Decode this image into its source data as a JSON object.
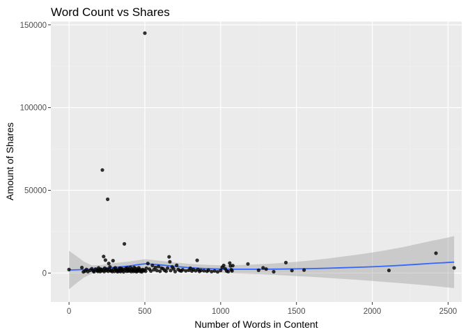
{
  "chart_data": {
    "type": "scatter",
    "title": "Word Count vs Shares",
    "xlabel": "Number of Words in Content",
    "ylabel": "Amount of Shares",
    "xlim": [
      -120,
      2590
    ],
    "ylim": [
      -17500,
      152000
    ],
    "x_ticks": [
      0,
      500,
      1000,
      1500,
      2000,
      2500
    ],
    "y_ticks": [
      0,
      50000,
      100000,
      150000
    ],
    "x_tick_labels": [
      "0",
      "500",
      "1000",
      "1500",
      "2000",
      "2500"
    ],
    "y_tick_labels": [
      "0",
      "50000",
      "100000",
      "150000"
    ],
    "grid": true,
    "legend": "none",
    "colors": {
      "panel": "#ebebeb",
      "grid_major": "#ffffff",
      "grid_minor": "#f2f2f2",
      "points": "#000000",
      "smooth_line": "#3366ff",
      "confidence_band": "#999999"
    },
    "points": [
      [
        0,
        2100
      ],
      [
        85,
        3300
      ],
      [
        95,
        700
      ],
      [
        105,
        1200
      ],
      [
        115,
        2200
      ],
      [
        125,
        900
      ],
      [
        140,
        1700
      ],
      [
        150,
        2600
      ],
      [
        160,
        1300
      ],
      [
        165,
        800
      ],
      [
        175,
        2400
      ],
      [
        185,
        1500
      ],
      [
        190,
        1000
      ],
      [
        195,
        3100
      ],
      [
        200,
        1900
      ],
      [
        205,
        900
      ],
      [
        210,
        2300
      ],
      [
        215,
        1400
      ],
      [
        220,
        62300
      ],
      [
        225,
        1800
      ],
      [
        228,
        10000
      ],
      [
        232,
        900
      ],
      [
        235,
        3000
      ],
      [
        240,
        7800
      ],
      [
        245,
        1500
      ],
      [
        250,
        2300
      ],
      [
        255,
        44600
      ],
      [
        258,
        1100
      ],
      [
        262,
        5800
      ],
      [
        265,
        2200
      ],
      [
        270,
        3700
      ],
      [
        275,
        1300
      ],
      [
        280,
        1600
      ],
      [
        285,
        900
      ],
      [
        290,
        7500
      ],
      [
        295,
        2400
      ],
      [
        300,
        1000
      ],
      [
        305,
        3200
      ],
      [
        310,
        1900
      ],
      [
        315,
        1400
      ],
      [
        320,
        800
      ],
      [
        325,
        2100
      ],
      [
        330,
        1200
      ],
      [
        335,
        3000
      ],
      [
        340,
        900
      ],
      [
        345,
        2700
      ],
      [
        350,
        1500
      ],
      [
        355,
        2300
      ],
      [
        360,
        700
      ],
      [
        365,
        17600
      ],
      [
        370,
        1800
      ],
      [
        375,
        2900
      ],
      [
        380,
        1100
      ],
      [
        385,
        3100
      ],
      [
        390,
        1200
      ],
      [
        395,
        2100
      ],
      [
        400,
        1400
      ],
      [
        405,
        3400
      ],
      [
        410,
        900
      ],
      [
        415,
        2400
      ],
      [
        420,
        1700
      ],
      [
        425,
        1000
      ],
      [
        430,
        3300
      ],
      [
        435,
        1200
      ],
      [
        440,
        2700
      ],
      [
        445,
        800
      ],
      [
        450,
        1900
      ],
      [
        455,
        1200
      ],
      [
        460,
        3200
      ],
      [
        465,
        2200
      ],
      [
        470,
        1000
      ],
      [
        475,
        1600
      ],
      [
        480,
        700
      ],
      [
        485,
        2100
      ],
      [
        490,
        1400
      ],
      [
        495,
        1800
      ],
      [
        500,
        145000
      ],
      [
        505,
        1100
      ],
      [
        510,
        2900
      ],
      [
        520,
        5800
      ],
      [
        530,
        2400
      ],
      [
        540,
        1200
      ],
      [
        550,
        4600
      ],
      [
        560,
        2000
      ],
      [
        570,
        3400
      ],
      [
        580,
        1500
      ],
      [
        590,
        4000
      ],
      [
        600,
        1100
      ],
      [
        610,
        3000
      ],
      [
        620,
        2600
      ],
      [
        630,
        1700
      ],
      [
        640,
        1100
      ],
      [
        650,
        3000
      ],
      [
        660,
        9800
      ],
      [
        665,
        6800
      ],
      [
        670,
        1500
      ],
      [
        680,
        3700
      ],
      [
        690,
        2500
      ],
      [
        700,
        900
      ],
      [
        710,
        4700
      ],
      [
        720,
        2200
      ],
      [
        730,
        1500
      ],
      [
        740,
        1200
      ],
      [
        750,
        2000
      ],
      [
        770,
        1300
      ],
      [
        790,
        1700
      ],
      [
        800,
        2900
      ],
      [
        810,
        1200
      ],
      [
        820,
        2100
      ],
      [
        835,
        1400
      ],
      [
        845,
        7700
      ],
      [
        850,
        2200
      ],
      [
        860,
        1000
      ],
      [
        870,
        1600
      ],
      [
        890,
        1400
      ],
      [
        910,
        1100
      ],
      [
        920,
        1800
      ],
      [
        940,
        900
      ],
      [
        960,
        1300
      ],
      [
        980,
        700
      ],
      [
        1000,
        1600
      ],
      [
        1010,
        3500
      ],
      [
        1020,
        4600
      ],
      [
        1030,
        2600
      ],
      [
        1040,
        1200
      ],
      [
        1050,
        900
      ],
      [
        1060,
        6000
      ],
      [
        1065,
        4300
      ],
      [
        1070,
        2000
      ],
      [
        1075,
        1300
      ],
      [
        1080,
        4500
      ],
      [
        1180,
        5500
      ],
      [
        1250,
        1700
      ],
      [
        1280,
        3200
      ],
      [
        1300,
        2400
      ],
      [
        1350,
        800
      ],
      [
        1430,
        6300
      ],
      [
        1470,
        1500
      ],
      [
        1550,
        1800
      ],
      [
        2110,
        1600
      ],
      [
        2420,
        12000
      ],
      [
        2540,
        3100
      ]
    ],
    "smooth_line": [
      [
        0,
        1800
      ],
      [
        100,
        2100
      ],
      [
        200,
        2600
      ],
      [
        300,
        3400
      ],
      [
        400,
        4300
      ],
      [
        450,
        5000
      ],
      [
        500,
        5600
      ],
      [
        550,
        5400
      ],
      [
        600,
        4900
      ],
      [
        700,
        4000
      ],
      [
        800,
        3200
      ],
      [
        900,
        2700
      ],
      [
        1000,
        2400
      ],
      [
        1100,
        2300
      ],
      [
        1200,
        2300
      ],
      [
        1300,
        2300
      ],
      [
        1400,
        2400
      ],
      [
        1500,
        2500
      ],
      [
        1600,
        2700
      ],
      [
        1700,
        2900
      ],
      [
        1800,
        3200
      ],
      [
        1900,
        3500
      ],
      [
        2000,
        3800
      ],
      [
        2100,
        4200
      ],
      [
        2200,
        4700
      ],
      [
        2300,
        5300
      ],
      [
        2400,
        5900
      ],
      [
        2500,
        6400
      ],
      [
        2540,
        6600
      ]
    ],
    "confidence_band": [
      [
        0,
        -9800,
        13400
      ],
      [
        50,
        -6000,
        10200
      ],
      [
        100,
        -2600,
        6800
      ],
      [
        150,
        -400,
        4700
      ],
      [
        200,
        500,
        4700
      ],
      [
        300,
        800,
        6000
      ],
      [
        400,
        1600,
        7000
      ],
      [
        500,
        2800,
        8400
      ],
      [
        600,
        2400,
        7400
      ],
      [
        700,
        1600,
        6400
      ],
      [
        800,
        900,
        5500
      ],
      [
        900,
        400,
        5000
      ],
      [
        1000,
        100,
        4700
      ],
      [
        1100,
        -200,
        4800
      ],
      [
        1200,
        -500,
        5100
      ],
      [
        1300,
        -900,
        5500
      ],
      [
        1400,
        -1300,
        6100
      ],
      [
        1500,
        -1800,
        6800
      ],
      [
        1600,
        -2300,
        7700
      ],
      [
        1700,
        -2900,
        8700
      ],
      [
        1800,
        -3500,
        9900
      ],
      [
        1900,
        -4100,
        11100
      ],
      [
        2000,
        -4800,
        12400
      ],
      [
        2100,
        -5500,
        13900
      ],
      [
        2200,
        -6200,
        15600
      ],
      [
        2300,
        -7000,
        17600
      ],
      [
        2400,
        -7800,
        19600
      ],
      [
        2500,
        -8700,
        21500
      ],
      [
        2540,
        -9100,
        22300
      ]
    ]
  }
}
